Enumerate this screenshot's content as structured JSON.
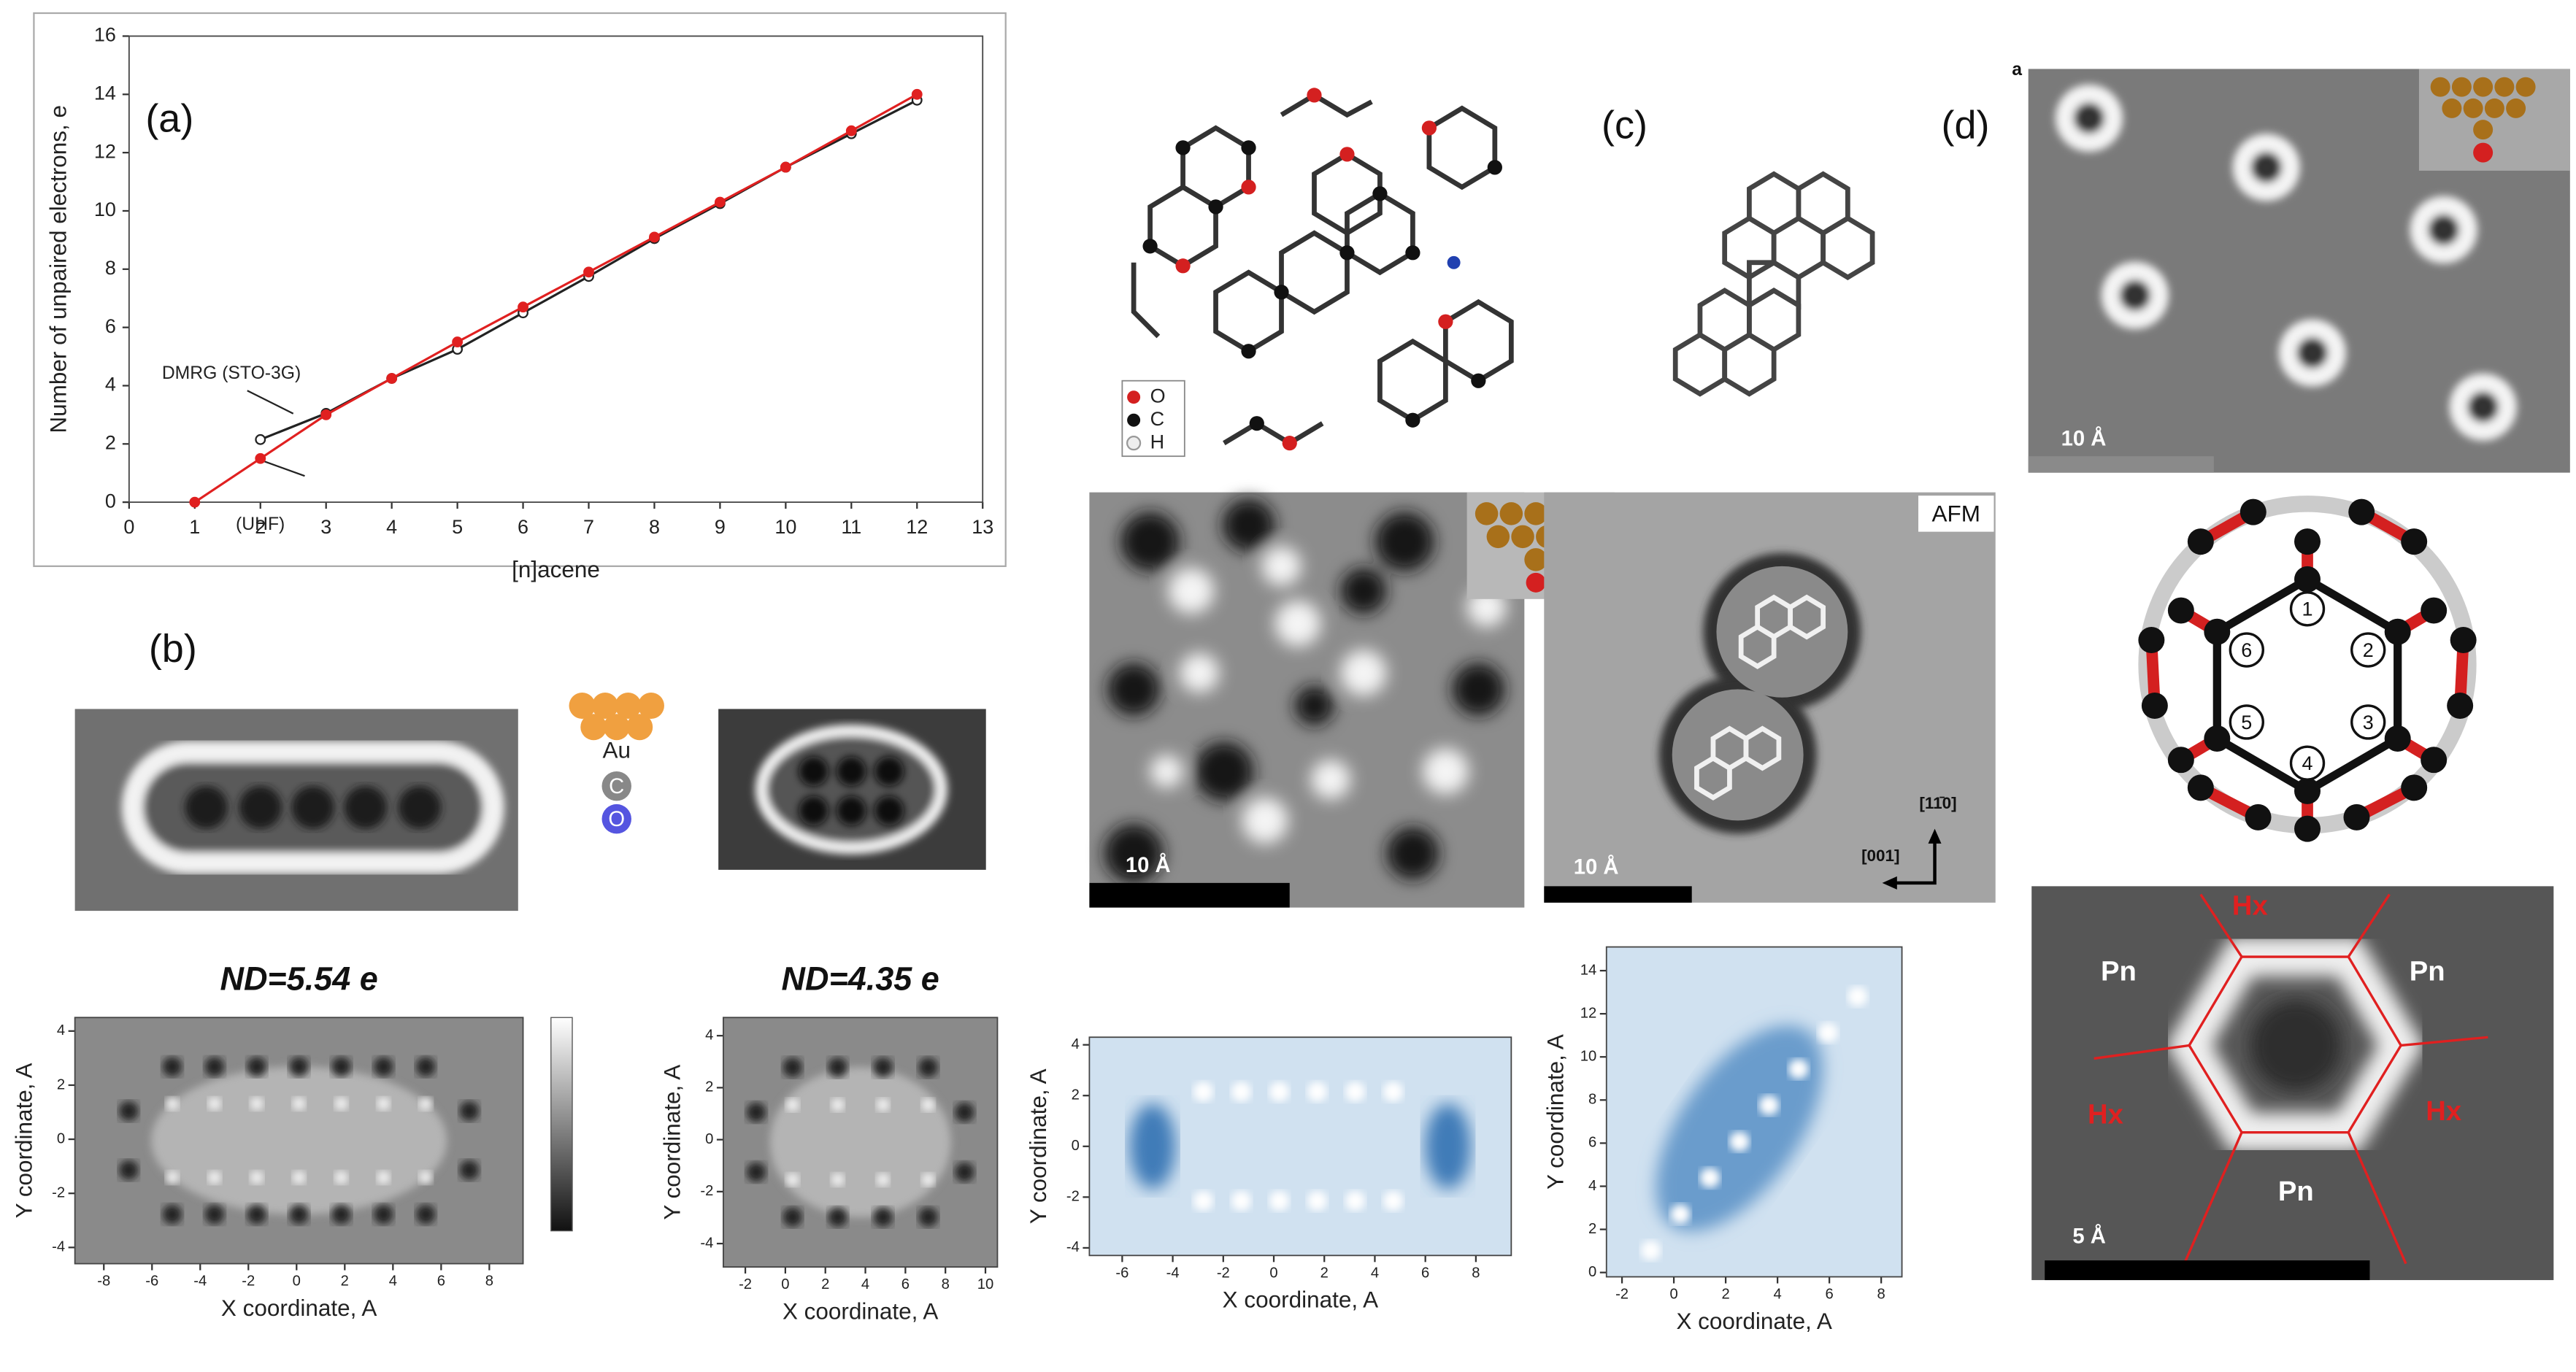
{
  "chart_data": [
    {
      "type": "line",
      "x_label": "[n]acene",
      "y_label": "Number of unpaired electrons, e",
      "x": [
        1,
        2,
        3,
        4,
        5,
        6,
        7,
        8,
        9,
        10,
        11,
        12
      ],
      "series": [
        {
          "name": "DMRG (STO-3G)",
          "color": "#222222",
          "values": [
            null,
            2.15,
            3.05,
            4.25,
            5.25,
            6.5,
            7.75,
            9.05,
            10.25,
            11.5,
            12.65,
            13.8
          ]
        },
        {
          "name": "(UHF)",
          "color": "#e02020",
          "values": [
            0,
            1.5,
            3.0,
            4.25,
            5.5,
            6.7,
            7.9,
            9.1,
            10.3,
            11.5,
            12.75,
            14.0
          ]
        }
      ],
      "xlim": [
        0,
        13
      ],
      "ylim": [
        0,
        16
      ],
      "xticks": [
        0,
        1,
        2,
        3,
        4,
        5,
        6,
        7,
        8,
        9,
        10,
        11,
        12,
        13
      ],
      "yticks": [
        0,
        2,
        4,
        6,
        8,
        10,
        12,
        14,
        16
      ]
    },
    {
      "type": "image",
      "title": "ND=5.54 e",
      "colormap": "gray",
      "x_label": "X coordinate, A",
      "y_label": "Y coordinate, A",
      "xlim": [
        -9.2,
        9.4
      ],
      "ylim": [
        -4.6,
        4.5
      ],
      "xticks": [
        -8,
        -6,
        -4,
        -2,
        0,
        2,
        4,
        6,
        8
      ],
      "yticks": [
        -4,
        -2,
        0,
        2,
        4
      ]
    },
    {
      "type": "image",
      "title": "ND=4.35 e",
      "colormap": "gray",
      "x_label": "X coordinate, A",
      "y_label": "Y coordinate, A",
      "xlim": [
        -3.1,
        10.6
      ],
      "ylim": [
        -4.9,
        4.7
      ],
      "xticks": [
        -2,
        0,
        2,
        4,
        6,
        8,
        10
      ],
      "yticks": [
        -4,
        -2,
        0,
        2,
        4
      ]
    },
    {
      "type": "image",
      "colormap": "blue",
      "x_label": "X coordinate, A",
      "y_label": "Y coordinate, A",
      "xlim": [
        -7.3,
        9.4
      ],
      "ylim": [
        -4.3,
        4.3
      ],
      "xticks": [
        -6,
        -4,
        -2,
        0,
        2,
        4,
        6,
        8
      ],
      "yticks": [
        -4,
        -2,
        0,
        2,
        4
      ]
    },
    {
      "type": "image",
      "colormap": "blue",
      "x_label": "X coordinate, A",
      "y_label": "Y coordinate, A",
      "xlim": [
        -2.6,
        8.8
      ],
      "ylim": [
        -0.2,
        15.1
      ],
      "xticks": [
        -2,
        0,
        2,
        4,
        6,
        8
      ],
      "yticks": [
        0,
        2,
        4,
        6,
        8,
        10,
        12,
        14
      ]
    }
  ],
  "panel_labels": {
    "a": "(a)",
    "b": "(b)",
    "c": "(c)",
    "d": "(d)",
    "d_inset": "a"
  },
  "panel_b": {
    "tip_labels": [
      "Au",
      "C",
      "O"
    ]
  },
  "panel_c": {
    "legend": [
      "O",
      "C",
      "H"
    ],
    "afm_label": "AFM",
    "scale_bars": [
      "10 Å",
      "10 Å"
    ],
    "directions": [
      "[11̄0]",
      "[001]"
    ]
  },
  "panel_d": {
    "scale_bars": [
      "10 Å",
      "5 Å"
    ],
    "ring_numbers": [
      "1",
      "2",
      "3",
      "4",
      "5",
      "6"
    ],
    "site_labels": [
      "Hx",
      "Hx",
      "Hx",
      "Pn",
      "Pn",
      "Pn"
    ]
  }
}
